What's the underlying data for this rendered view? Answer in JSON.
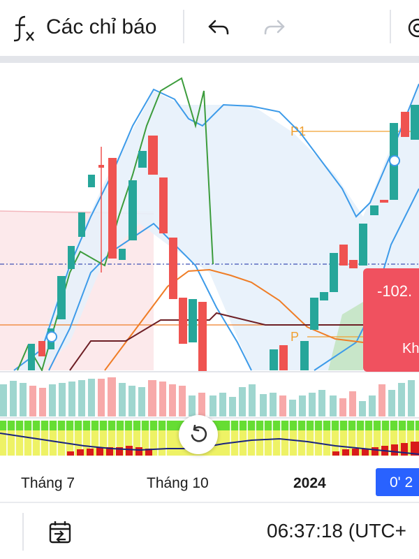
{
  "toolbar": {
    "indicators_label": "Các chỉ báo",
    "icons": {
      "indicators": "fx-icon",
      "undo": "undo-icon",
      "redo": "redo-icon",
      "settings": "gear-icon"
    }
  },
  "chart": {
    "labels": {
      "p1": "P1",
      "p": "P"
    },
    "price_label": "-102.",
    "price_sub": "Kh"
  },
  "time_axis": {
    "labels": [
      "Tháng 7",
      "Tháng 10",
      "2024"
    ],
    "cursor": "0' 2"
  },
  "bottom_bar": {
    "clock": "06:37:18 (UTC+"
  },
  "colors": {
    "up": "#26a69a",
    "down": "#ef5350",
    "bollinger": "#3d9be9",
    "orange": "#ef7d26",
    "maroon": "#6d1f25",
    "green_line": "#3c9c3c",
    "p1_line": "#f0a030",
    "dash": "#3f51b5",
    "cursor": "#2962ff"
  }
}
